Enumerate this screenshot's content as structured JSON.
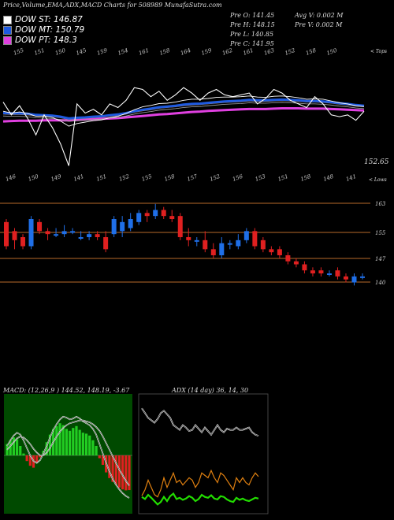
{
  "header": {
    "title": "Price,Volume,EMA,ADX,MACD Charts for 508989 MunafaSutra.com",
    "ohlc": {
      "open": "Pre O: 141.45",
      "high": "Pre H: 148.15",
      "low": "Pre L: 140.85",
      "close": "Pre C: 141.95",
      "avg_vol": "Avg V: 0.002 M",
      "pre_vol": "Pre V: 0.002 M"
    },
    "legend": [
      {
        "label": "DOW ST: 146.87",
        "color": "#ffffff"
      },
      {
        "label": "DOW MT: 150.79",
        "color": "#1e5ae0"
      },
      {
        "label": "DOW PT: 148.3",
        "color": "#e040e0"
      }
    ],
    "tops_label": "< Tops",
    "lows_label": "< Lows",
    "last_price": "152.65"
  },
  "colors": {
    "bull": "#1f6fe8",
    "bear": "#e02020",
    "st": "#ffffff",
    "mt": "#1e5ae0",
    "pt": "#e040e0",
    "macd_pos": "#22cc22",
    "macd_neg": "#e02020",
    "adx_green": "#22dd00",
    "adx_orange": "#e08010",
    "hline": "#b86a2a"
  },
  "chart_data": [
    {
      "type": "line",
      "name": "price-ema",
      "top_labels": [
        "155",
        "151",
        "150",
        "145",
        "159",
        "154",
        "161",
        "158",
        "164",
        "159",
        "162",
        "161",
        "163",
        "152",
        "158",
        "150"
      ],
      "low_labels": [
        "146",
        "150",
        "149",
        "141",
        "151",
        "152",
        "155",
        "158",
        "157",
        "152",
        "156",
        "153",
        "151",
        "158",
        "148",
        "141"
      ],
      "close": [
        154.5,
        151,
        153.5,
        150,
        145.5,
        151,
        147.5,
        143,
        137,
        154,
        151.5,
        152.5,
        151,
        154,
        153,
        155,
        158.5,
        158,
        156,
        157.5,
        155,
        156.5,
        158.5,
        157,
        155,
        157,
        158,
        156.5,
        156,
        156.5,
        157,
        154,
        155.5,
        158,
        157,
        155,
        154,
        153,
        156,
        154,
        151,
        150.5,
        151,
        149.5,
        152
      ],
      "ema_st": [
        152,
        151.5,
        151.8,
        151.4,
        150.6,
        150.7,
        150.3,
        149.3,
        147.9,
        148.6,
        149,
        149.4,
        149.6,
        150.2,
        150.6,
        151.4,
        152.4,
        153.2,
        153.6,
        154.1,
        154.2,
        154.5,
        155,
        155.3,
        155.3,
        155.5,
        155.8,
        155.9,
        155.9,
        156,
        156.2,
        155.9,
        155.8,
        156.1,
        156.2,
        156,
        155.7,
        155.3,
        155.4,
        155.3,
        154.8,
        154.3,
        154,
        153.5,
        153.3
      ],
      "ema_mt": [
        151.5,
        151.4,
        151.4,
        151.3,
        151,
        150.9,
        150.8,
        150.5,
        150,
        150.2,
        150.3,
        150.5,
        150.6,
        150.9,
        151.1,
        151.5,
        152,
        152.4,
        152.7,
        153.1,
        153.3,
        153.5,
        153.8,
        154,
        154.1,
        154.3,
        154.5,
        154.7,
        154.8,
        154.9,
        155.1,
        155,
        155,
        155.1,
        155.2,
        155.1,
        155,
        154.8,
        154.8,
        154.7,
        154.5,
        154.2,
        154,
        153.7,
        153.5
      ],
      "ema_pt": [
        149.2,
        149.3,
        149.4,
        149.4,
        149.4,
        149.5,
        149.5,
        149.5,
        149.5,
        149.6,
        149.7,
        149.8,
        149.9,
        150,
        150.1,
        150.3,
        150.5,
        150.7,
        150.9,
        151.1,
        151.2,
        151.4,
        151.6,
        151.8,
        151.9,
        152.1,
        152.2,
        152.3,
        152.4,
        152.5,
        152.6,
        152.6,
        152.6,
        152.7,
        152.8,
        152.8,
        152.8,
        152.7,
        152.7,
        152.7,
        152.6,
        152.5,
        152.4,
        152.3,
        152.2
      ]
    },
    {
      "type": "candlestick",
      "name": "price-candles",
      "ylabels": [
        "163",
        "155",
        "147",
        "140"
      ],
      "candles": [
        {
          "o": 160,
          "c": 152,
          "h": 161,
          "l": 151
        },
        {
          "o": 157,
          "c": 154,
          "h": 158,
          "l": 151
        },
        {
          "o": 155,
          "c": 152,
          "h": 156,
          "l": 151
        },
        {
          "o": 152,
          "c": 161,
          "h": 162,
          "l": 151
        },
        {
          "o": 160,
          "c": 157,
          "h": 161,
          "l": 156
        },
        {
          "o": 157,
          "c": 156,
          "h": 158,
          "l": 154
        },
        {
          "o": 156,
          "c": 156,
          "h": 158,
          "l": 155
        },
        {
          "o": 156,
          "c": 157,
          "h": 159,
          "l": 155
        },
        {
          "o": 157,
          "c": 157,
          "h": 158,
          "l": 156
        },
        {
          "o": 155,
          "c": 155,
          "h": 157,
          "l": 154
        },
        {
          "o": 155,
          "c": 156,
          "h": 157,
          "l": 154
        },
        {
          "o": 156,
          "c": 155,
          "h": 157,
          "l": 154
        },
        {
          "o": 155,
          "c": 151,
          "h": 157,
          "l": 150
        },
        {
          "o": 156,
          "c": 161,
          "h": 162,
          "l": 155
        },
        {
          "o": 157,
          "c": 160,
          "h": 162,
          "l": 155
        },
        {
          "o": 158,
          "c": 161,
          "h": 163,
          "l": 157
        },
        {
          "o": 160,
          "c": 163,
          "h": 164,
          "l": 159
        },
        {
          "o": 163,
          "c": 162,
          "h": 164,
          "l": 160
        },
        {
          "o": 162,
          "c": 164,
          "h": 166,
          "l": 161
        },
        {
          "o": 164,
          "c": 162,
          "h": 165,
          "l": 161
        },
        {
          "o": 162,
          "c": 161,
          "h": 164,
          "l": 160
        },
        {
          "o": 162,
          "c": 155,
          "h": 163,
          "l": 154
        },
        {
          "o": 155,
          "c": 154,
          "h": 158,
          "l": 152
        },
        {
          "o": 154,
          "c": 154,
          "h": 155,
          "l": 152
        },
        {
          "o": 154,
          "c": 151,
          "h": 157,
          "l": 150
        },
        {
          "o": 151,
          "c": 149,
          "h": 153,
          "l": 148
        },
        {
          "o": 149,
          "c": 153,
          "h": 155,
          "l": 148
        },
        {
          "o": 153,
          "c": 153,
          "h": 154,
          "l": 151
        },
        {
          "o": 152,
          "c": 154,
          "h": 156,
          "l": 151
        },
        {
          "o": 154,
          "c": 157,
          "h": 158,
          "l": 153
        },
        {
          "o": 157,
          "c": 152,
          "h": 158,
          "l": 151
        },
        {
          "o": 154,
          "c": 151,
          "h": 155,
          "l": 150
        },
        {
          "o": 151,
          "c": 150,
          "h": 152,
          "l": 149
        },
        {
          "o": 151,
          "c": 149,
          "h": 152,
          "l": 148
        },
        {
          "o": 149,
          "c": 147,
          "h": 150,
          "l": 146
        },
        {
          "o": 147,
          "c": 146,
          "h": 148,
          "l": 145
        },
        {
          "o": 146,
          "c": 144,
          "h": 147,
          "l": 143
        },
        {
          "o": 144,
          "c": 143,
          "h": 145,
          "l": 142
        },
        {
          "o": 144,
          "c": 143,
          "h": 145,
          "l": 142
        },
        {
          "o": 143,
          "c": 143,
          "h": 144,
          "l": 142
        },
        {
          "o": 144,
          "c": 142,
          "h": 145,
          "l": 141
        },
        {
          "o": 142,
          "c": 141,
          "h": 143,
          "l": 140
        },
        {
          "o": 140,
          "c": 142,
          "h": 143,
          "l": 139
        },
        {
          "o": 142,
          "c": 142,
          "h": 143,
          "l": 141
        }
      ]
    },
    {
      "type": "bar",
      "name": "macd",
      "header": "MACD: (12,26,9 ) 144.52, 148.19, -3.67",
      "histogram": [
        1.2,
        1.6,
        1.9,
        1.7,
        1.0,
        0.2,
        -0.6,
        -1.1,
        -1.3,
        -0.8,
        -0.2,
        0.5,
        1.4,
        2.2,
        2.8,
        3.1,
        3.4,
        3.2,
        2.8,
        2.6,
        2.9,
        3.1,
        2.7,
        2.4,
        2.3,
        2.1,
        1.6,
        1.0,
        -0.3,
        -1.0,
        -1.8,
        -2.4,
        -2.8,
        -3.1,
        -3.4,
        -3.6,
        -3.7,
        -3.67
      ],
      "macd_line": [
        1.0,
        1.6,
        2.1,
        2.4,
        2.2,
        1.6,
        0.8,
        0.0,
        -0.6,
        -0.8,
        -0.5,
        0.2,
        1.0,
        1.9,
        2.7,
        3.3,
        3.8,
        4.1,
        4.0,
        3.8,
        3.9,
        4.1,
        3.9,
        3.6,
        3.4,
        3.2,
        2.8,
        2.2,
        1.2,
        0.2,
        -0.8,
        -1.7,
        -2.5,
        -3.1,
        -3.6,
        -4.0,
        -4.3,
        -4.5
      ],
      "signal_line": [
        0.6,
        1.0,
        1.4,
        1.8,
        2.0,
        1.9,
        1.6,
        1.2,
        0.7,
        0.3,
        0.0,
        0.0,
        0.3,
        0.8,
        1.4,
        2.0,
        2.5,
        2.9,
        3.2,
        3.4,
        3.5,
        3.6,
        3.7,
        3.7,
        3.6,
        3.5,
        3.3,
        3.0,
        2.6,
        2.0,
        1.3,
        0.6,
        -0.1,
        -0.8,
        -1.5,
        -2.1,
        -2.7,
        -3.2
      ]
    },
    {
      "type": "line",
      "name": "adx",
      "header": "ADX (14 day) 36, 14, 30",
      "plus_di": [
        40,
        35,
        45,
        38,
        30,
        22,
        28,
        40,
        30,
        42,
        48,
        35,
        38,
        33,
        36,
        42,
        38,
        30,
        35,
        45,
        40,
        38,
        44,
        36,
        34,
        42,
        40,
        34,
        30,
        28,
        38,
        33,
        36,
        32,
        30,
        34,
        38,
        36
      ],
      "minus_di": [
        85,
        80,
        72,
        78,
        84,
        86,
        80,
        70,
        78,
        72,
        66,
        74,
        72,
        76,
        73,
        70,
        72,
        78,
        74,
        66,
        68,
        70,
        64,
        70,
        74,
        66,
        68,
        72,
        76,
        80,
        70,
        74,
        70,
        74,
        76,
        70,
        66,
        69
      ],
      "adx_line": [
        88,
        84,
        80,
        78,
        76,
        79,
        84,
        86,
        83,
        80,
        74,
        72,
        70,
        74,
        72,
        69,
        70,
        74,
        71,
        68,
        72,
        69,
        66,
        70,
        74,
        70,
        68,
        71,
        70,
        70,
        72,
        70,
        70,
        71,
        72,
        68,
        66,
        65
      ]
    }
  ]
}
